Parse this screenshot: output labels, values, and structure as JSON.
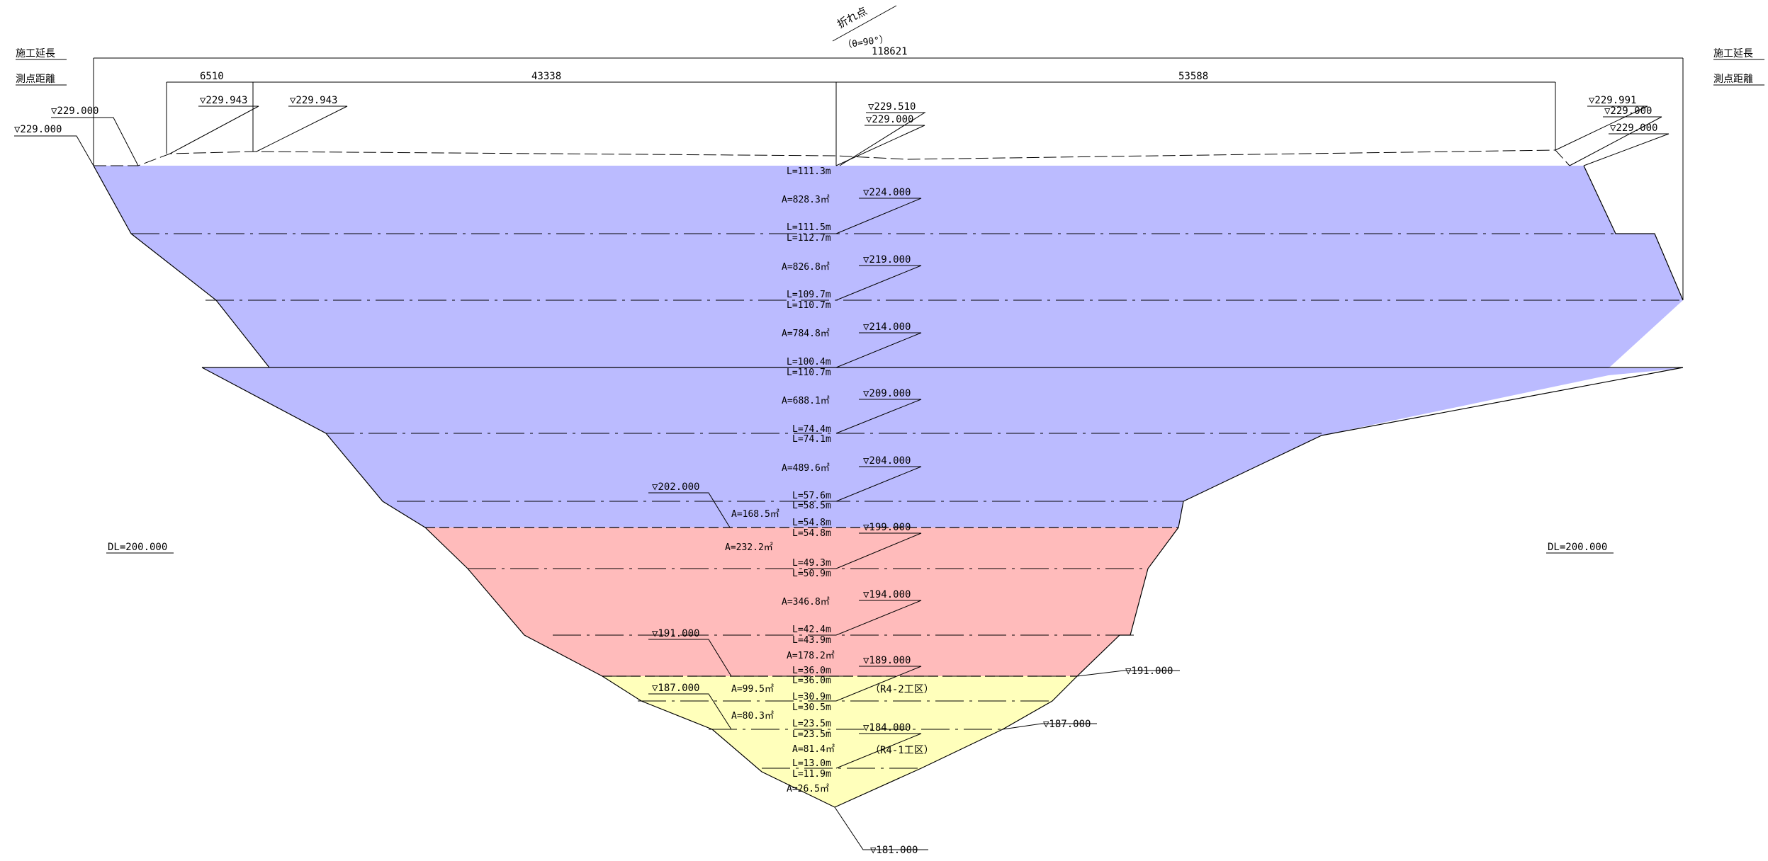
{
  "header": {
    "break_point": "折れ点",
    "break_angle": "（θ=90°）",
    "left_construction_length": "施工延長",
    "left_station_distance": "測点距離",
    "right_construction_length": "施工延長",
    "right_station_distance": "測点距離"
  },
  "dimensions": {
    "total": "118621",
    "seg1": "6510",
    "seg2": "43338",
    "seg3": "53588"
  },
  "top_elevations": {
    "left_outer": "▽229.000",
    "left_inner": "▽229.000",
    "pt_943_a": "▽229.943",
    "pt_943_b": "▽229.943",
    "center_510": "▽229.510",
    "center_000": "▽229.000",
    "right_991": "▽229.991",
    "right_000_a": "▽229.000",
    "right_000_b": "▽229.000"
  },
  "datum": {
    "left": "DL=200.000",
    "right": "DL=200.000"
  },
  "layers": [
    {
      "L_top": "L=111.3m",
      "A": "A=828.3㎡",
      "elev": "▽224.000",
      "L_bottom": "L=111.5m"
    },
    {
      "L_top": "L=112.7m",
      "A": "A=826.8㎡",
      "elev": "▽219.000",
      "L_bottom": "L=109.7m"
    },
    {
      "L_top": "L=110.7m",
      "A": "A=784.8㎡",
      "elev": "▽214.000",
      "L_bottom": "L=100.4m"
    },
    {
      "L_top": "L=110.7m",
      "A": "A=688.1㎡",
      "elev": "▽209.000",
      "L_bottom": "L=74.4m"
    },
    {
      "L_top": "L=74.1m",
      "A": "A=489.6㎡",
      "elev": "▽204.000",
      "L_bottom": "L=57.6m"
    },
    {
      "L_top": "L=58.5m",
      "A": "A=168.5㎡",
      "elev": "▽202.000",
      "L_bottom": "L=54.8m"
    },
    {
      "L_top": "L=54.8m",
      "A": "A=232.2㎡",
      "elev": "▽199.000",
      "L_bottom": "L=49.3m"
    },
    {
      "L_top": "L=50.9m",
      "A": "A=346.8㎡",
      "elev": "▽194.000",
      "L_bottom": "L=42.4m"
    },
    {
      "L_top": "L=43.9m",
      "A": "A=178.2㎡",
      "elev": "▽191.000",
      "L_bottom": "L=36.0m"
    },
    {
      "L_top": "L=36.0m",
      "A": "A=99.5㎡",
      "elev": "▽189.000",
      "L_bottom": "L=30.9m"
    },
    {
      "L_top": "L=30.5m",
      "A": "A=80.3㎡",
      "elev": "▽187.000",
      "L_bottom": "L=23.5m"
    },
    {
      "L_top": "L=23.5m",
      "A": "A=81.4㎡",
      "elev": "▽184.000",
      "L_bottom": "L=13.0m"
    },
    {
      "L_top": "L=11.9m",
      "A": "A=26.5㎡",
      "elev": "▽181.000",
      "L_bottom": ""
    }
  ],
  "side_elevations": {
    "right_191": "▽191.000",
    "right_187": "▽187.000"
  },
  "zones": {
    "r4_2": "（R4-2工区）",
    "r4_1": "（R4-1工区）"
  },
  "colors": {
    "blue_zone": "#bbbbff",
    "red_zone": "#ffbbbb",
    "yellow_zone": "#ffffbb",
    "line": "#000000"
  }
}
